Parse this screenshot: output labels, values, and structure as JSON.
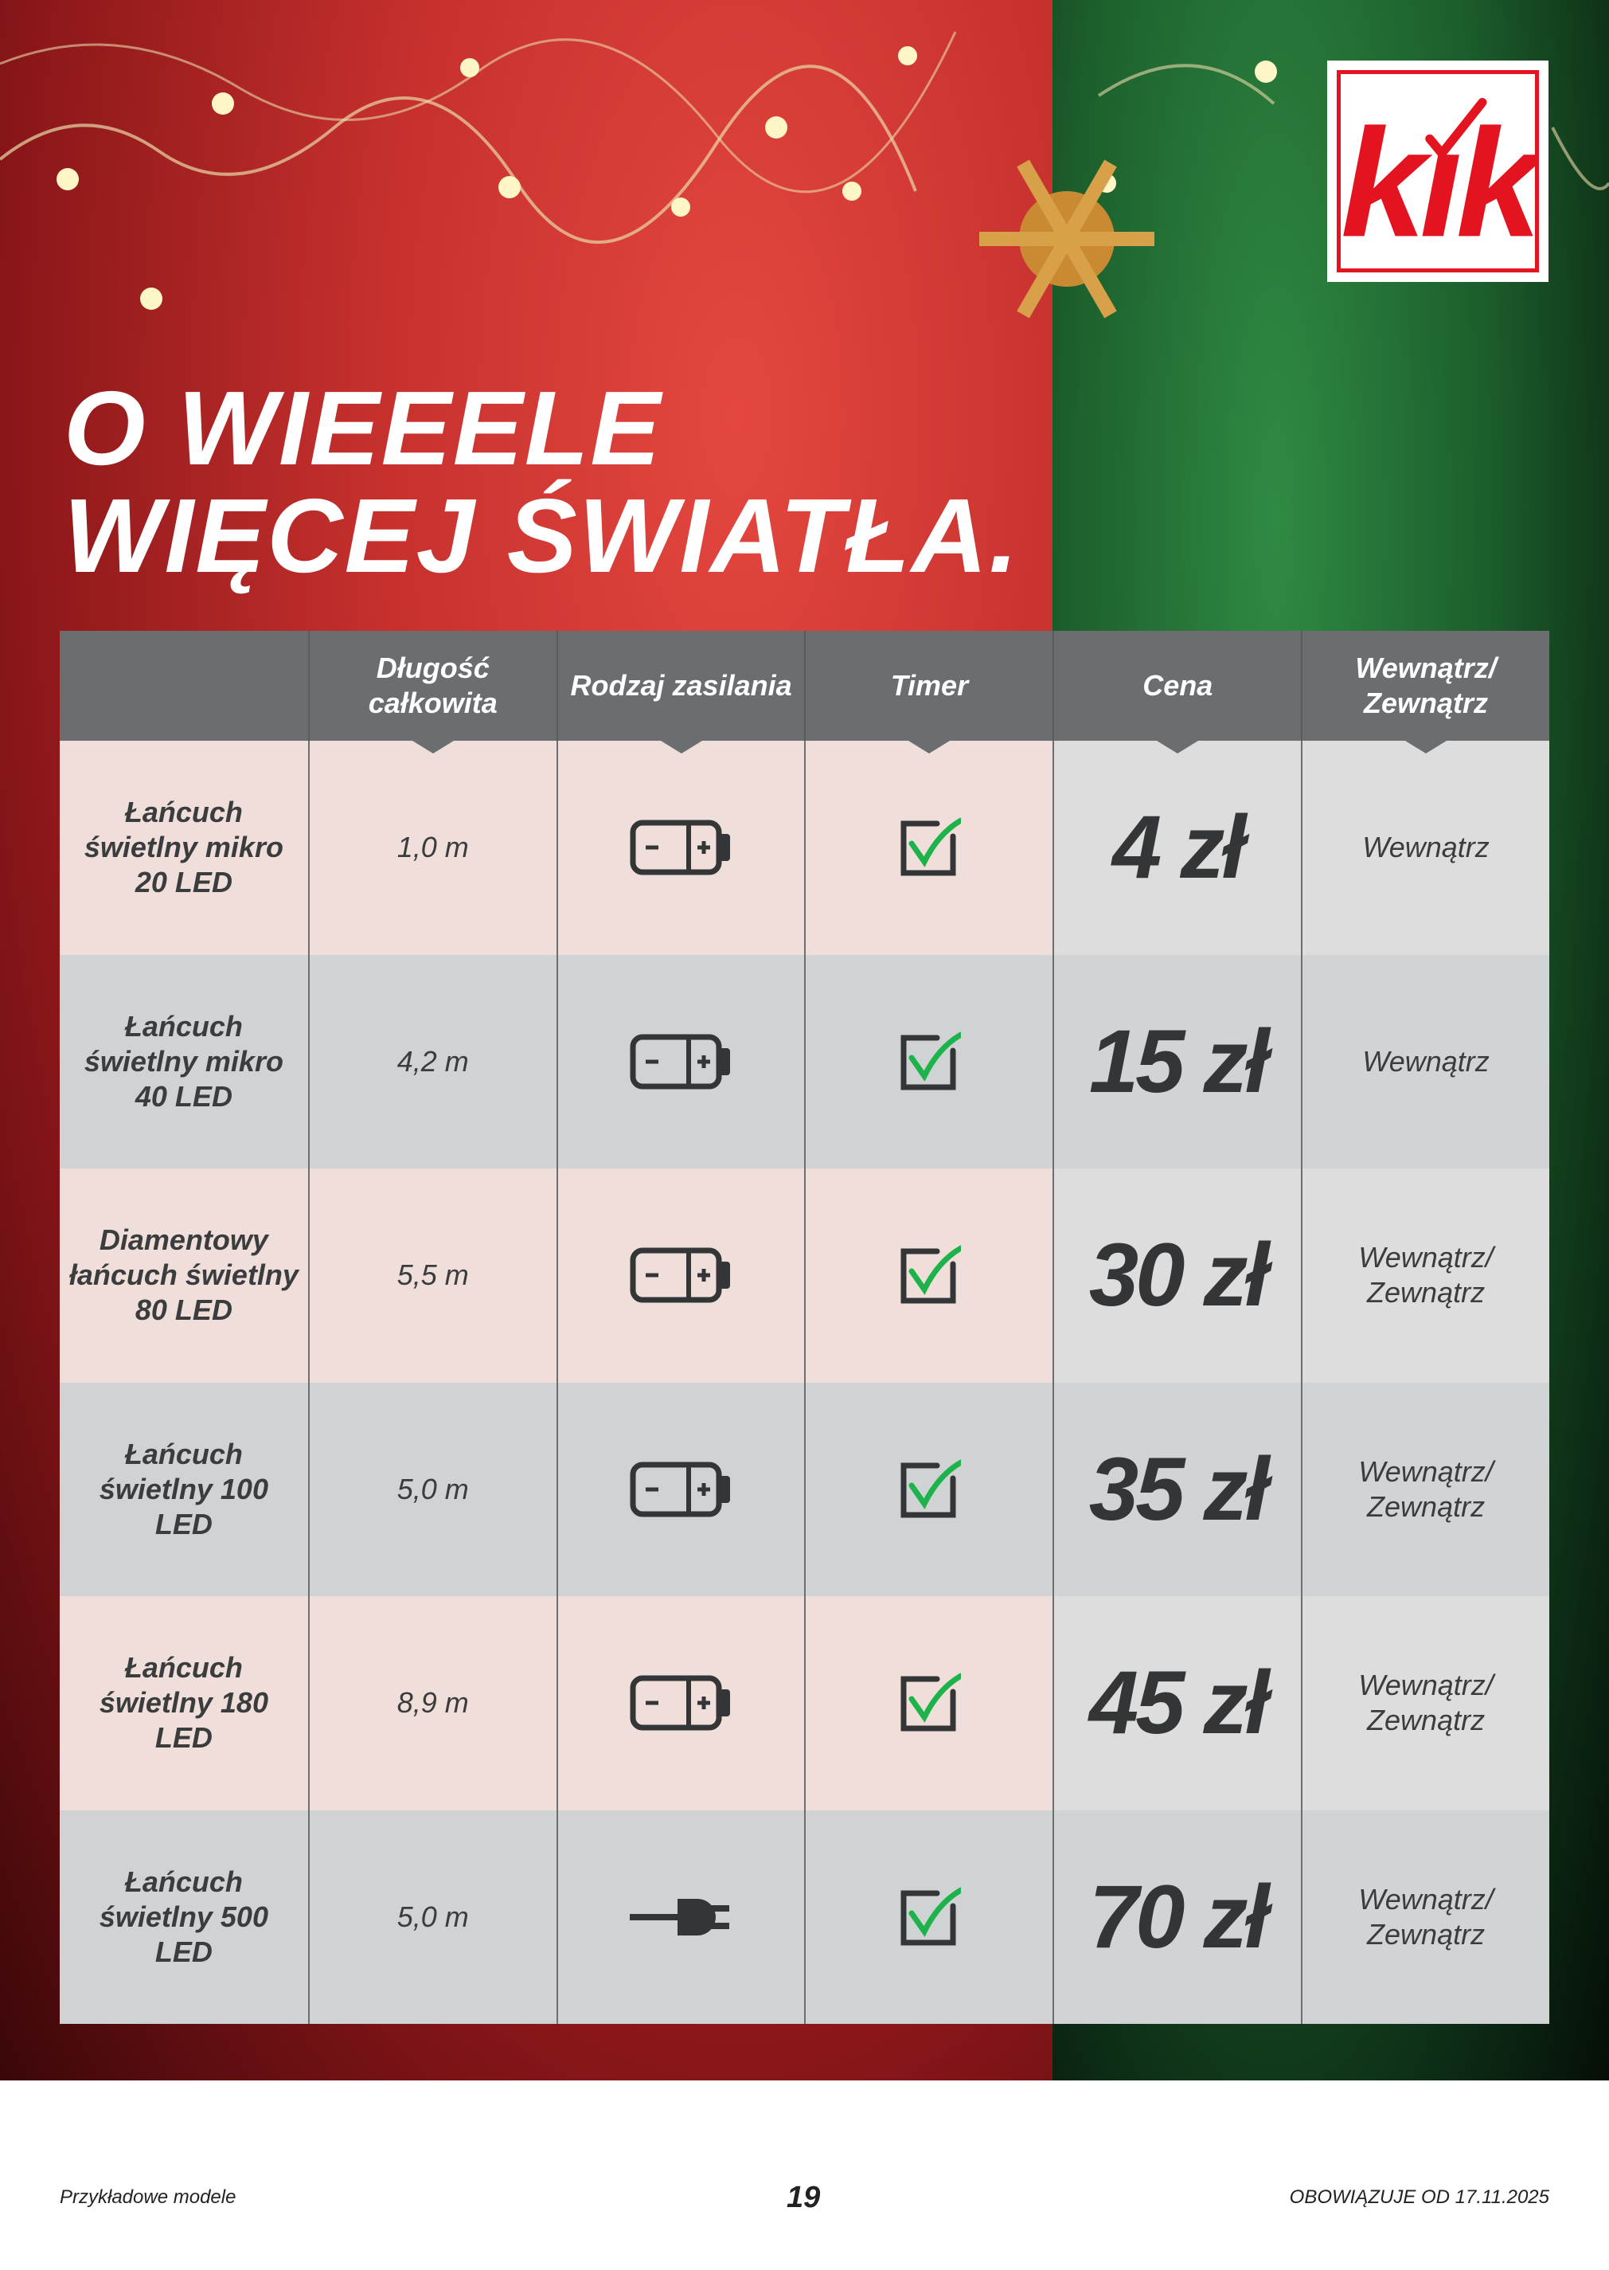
{
  "brand": {
    "logo_text": "kik",
    "color": "#e3141f"
  },
  "headline": {
    "line1": "O WIEEELE",
    "line2": "WIĘCEJ ŚWIATŁA."
  },
  "table": {
    "headers": [
      "",
      "Długość całkowita",
      "Rodzaj zasilania",
      "Timer",
      "Cena",
      "Wewnątrz/ Zewnątrz"
    ],
    "rows": [
      {
        "name": "Łańcuch świetlny mikro 20 LED",
        "length": "1,0 m",
        "power": "battery-icon",
        "timer": true,
        "price": "4 zł",
        "location": "Wewnątrz"
      },
      {
        "name": "Łańcuch świetlny mikro 40 LED",
        "length": "4,2 m",
        "power": "battery-icon",
        "timer": true,
        "price": "15 zł",
        "location": "Wewnątrz"
      },
      {
        "name": "Diamentowy łańcuch świetlny 80 LED",
        "length": "5,5 m",
        "power": "battery-icon",
        "timer": true,
        "price": "30 zł",
        "location": "Wewnątrz/ Zewnątrz"
      },
      {
        "name": "Łańcuch świetlny 100 LED",
        "length": "5,0 m",
        "power": "battery-icon",
        "timer": true,
        "price": "35 zł",
        "location": "Wewnątrz/ Zewnątrz"
      },
      {
        "name": "Łańcuch świetlny 180 LED",
        "length": "8,9 m",
        "power": "battery-icon",
        "timer": true,
        "price": "45 zł",
        "location": "Wewnątrz/ Zewnątrz"
      },
      {
        "name": "Łańcuch świetlny 500 LED",
        "length": "5,0 m",
        "power": "plug-icon",
        "timer": true,
        "price": "70 zł",
        "location": "Wewnątrz/ Zewnątrz"
      }
    ]
  },
  "footer": {
    "left": "Przykładowe modele",
    "page": "19",
    "right": "OBOWIĄZUJE OD 17.11.2025"
  },
  "colors": {
    "header": "#6b6e71",
    "check": "#1db34a",
    "icon": "#333537"
  }
}
